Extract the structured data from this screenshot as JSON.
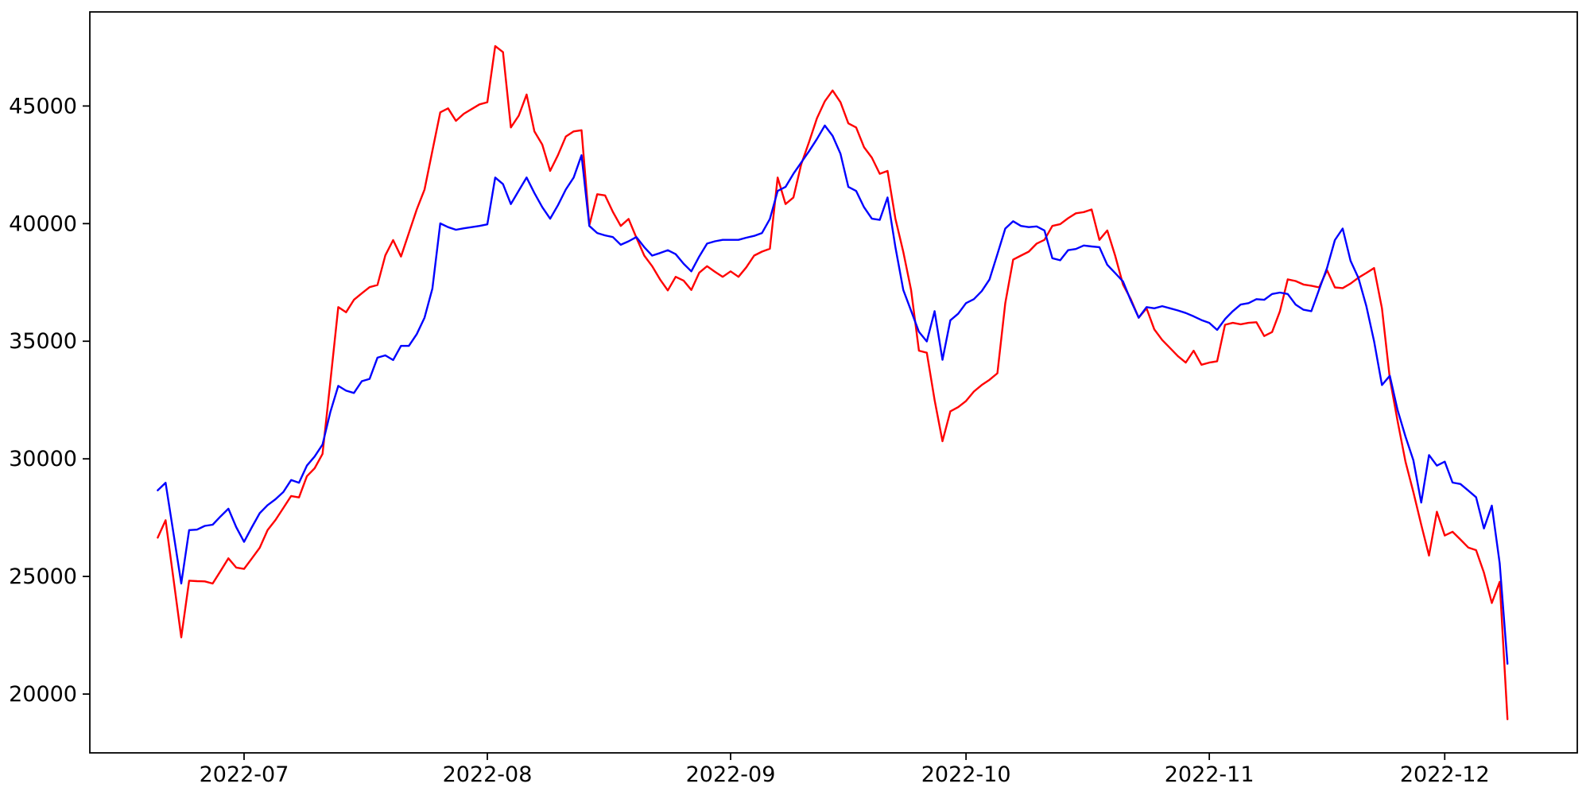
{
  "figure": {
    "background_color": "#ffffff",
    "frame_color": "#000000",
    "title": ""
  },
  "chart_data": {
    "type": "line",
    "title": "",
    "xlabel": "",
    "ylabel": "",
    "grid": false,
    "legend_position": "none",
    "x_start_date": "2022-06-20",
    "x_end_date": "2022-12-09",
    "frequency": "daily",
    "x_tick_labels": [
      "2022-07",
      "2022-08",
      "2022-09",
      "2022-10",
      "2022-11",
      "2022-12"
    ],
    "x_tick_day_offsets": [
      11,
      42,
      73,
      103,
      134,
      164
    ],
    "y_tick_labels": [
      "20000",
      "25000",
      "30000",
      "35000",
      "40000",
      "45000"
    ],
    "y_ticks": [
      20000,
      25000,
      30000,
      35000,
      40000,
      45000
    ],
    "ylim": [
      17500,
      49000
    ],
    "series": [
      {
        "name": "red-series",
        "color": "#ff0000",
        "values": [
          26650,
          27390,
          24900,
          22410,
          24820,
          24800,
          24790,
          24700,
          25230,
          25770,
          25380,
          25320,
          25770,
          26220,
          26970,
          27400,
          27910,
          28420,
          28360,
          29260,
          29600,
          30210,
          33300,
          36450,
          36230,
          36760,
          37040,
          37300,
          37390,
          38650,
          39300,
          38600,
          39600,
          40600,
          41450,
          43100,
          44730,
          44900,
          44370,
          44670,
          44870,
          45070,
          45160,
          47550,
          47290,
          44090,
          44590,
          45490,
          43920,
          43360,
          42240,
          42910,
          43700,
          43920,
          43970,
          39930,
          41250,
          41200,
          40500,
          39900,
          40200,
          39400,
          38640,
          38190,
          37630,
          37160,
          37740,
          37580,
          37180,
          37910,
          38190,
          37950,
          37740,
          37970,
          37740,
          38140,
          38640,
          38810,
          38930,
          41960,
          40830,
          41110,
          42520,
          43470,
          44480,
          45200,
          45660,
          45160,
          44260,
          44090,
          43250,
          42800,
          42120,
          42240,
          40210,
          38800,
          37180,
          34600,
          34510,
          32500,
          30750,
          32020,
          32200,
          32460,
          32860,
          33140,
          33360,
          33640,
          36620,
          38470,
          38640,
          38810,
          39150,
          39310,
          39900,
          39980,
          40230,
          40440,
          40490,
          40600,
          39310,
          39710,
          38640,
          37410,
          36790,
          36000,
          36400,
          35500,
          35050,
          34710,
          34370,
          34090,
          34600,
          34000,
          34090,
          34150,
          35700,
          35780,
          35720,
          35780,
          35810,
          35220,
          35390,
          36280,
          37630,
          37560,
          37410,
          37360,
          37290,
          38020,
          37290,
          37260,
          37450,
          37700,
          37900,
          38110,
          36400,
          33420,
          31600,
          29880,
          28590,
          27200,
          25890,
          27750,
          26740,
          26900,
          26570,
          26230,
          26120,
          25160,
          23870,
          24770,
          18930
        ]
      },
      {
        "name": "blue-series",
        "color": "#0000ff",
        "values": [
          28660,
          28980,
          26840,
          24700,
          26970,
          26990,
          27150,
          27200,
          27550,
          27880,
          27100,
          26470,
          27100,
          27690,
          28030,
          28280,
          28590,
          29100,
          28980,
          29710,
          30100,
          30610,
          32000,
          33100,
          32900,
          32800,
          33300,
          33400,
          34300,
          34400,
          34200,
          34800,
          34800,
          35300,
          36000,
          37240,
          40010,
          39850,
          39740,
          39800,
          39850,
          39900,
          39970,
          41960,
          41680,
          40830,
          41400,
          41960,
          41300,
          40700,
          40210,
          40780,
          41450,
          41960,
          42910,
          39900,
          39600,
          39500,
          39430,
          39100,
          39250,
          39430,
          39000,
          38640,
          38750,
          38870,
          38700,
          38300,
          37970,
          38600,
          39150,
          39250,
          39310,
          39310,
          39310,
          39400,
          39480,
          39600,
          40200,
          41390,
          41560,
          42120,
          42600,
          43080,
          43600,
          44170,
          43730,
          42970,
          41560,
          41390,
          40700,
          40210,
          40160,
          41110,
          39000,
          37180,
          36300,
          35400,
          34990,
          36280,
          34210,
          35890,
          36170,
          36620,
          36790,
          37130,
          37630,
          38700,
          39790,
          40100,
          39900,
          39850,
          39880,
          39710,
          38530,
          38440,
          38870,
          38920,
          39070,
          39030,
          39000,
          38250,
          37900,
          37540,
          36730,
          36000,
          36450,
          36400,
          36490,
          36400,
          36310,
          36200,
          36060,
          35900,
          35780,
          35480,
          35940,
          36280,
          36560,
          36620,
          36790,
          36760,
          37010,
          37070,
          37010,
          36560,
          36340,
          36280,
          37200,
          38110,
          39300,
          39790,
          38420,
          37690,
          36500,
          35000,
          33140,
          33530,
          32070,
          30950,
          29940,
          28140,
          30160,
          29710,
          29880,
          28990,
          28930,
          28650,
          28370,
          27040,
          28010,
          25560,
          21290
        ]
      }
    ]
  }
}
